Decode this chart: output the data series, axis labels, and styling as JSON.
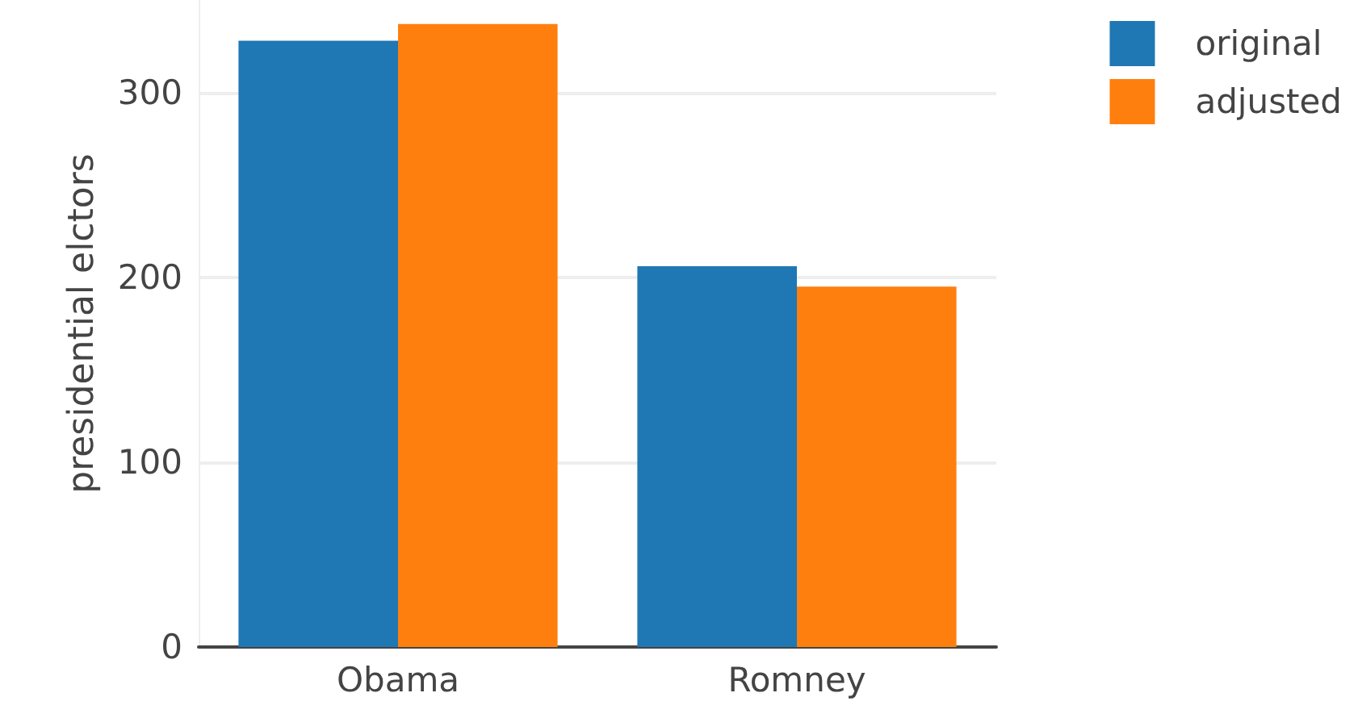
{
  "chart_data": {
    "type": "bar",
    "ylabel": "presidential elctors",
    "categories": [
      "Obama",
      "Romney"
    ],
    "series": [
      {
        "name": "original",
        "color": "#1f77b4",
        "values": [
          328,
          206
        ]
      },
      {
        "name": "adjusted",
        "color": "#ff7f0e",
        "values": [
          337,
          195
        ]
      }
    ],
    "ylim": [
      0,
      350
    ],
    "yticks": [
      0,
      100,
      200,
      300
    ],
    "grid": "y",
    "legend": "top right"
  }
}
